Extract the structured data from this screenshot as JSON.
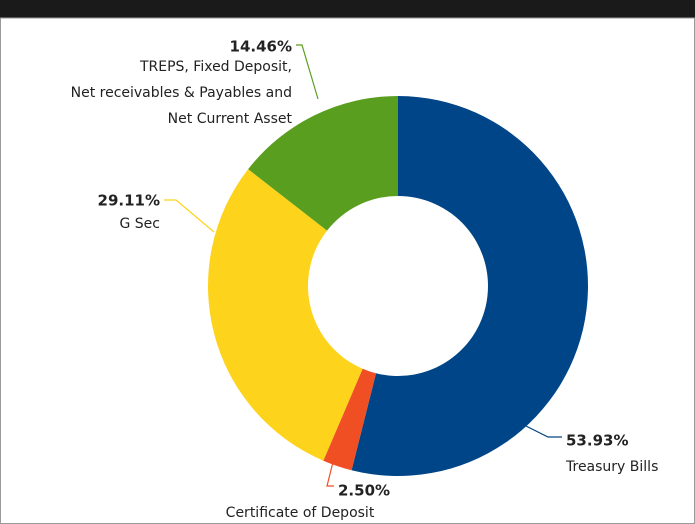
{
  "chart_data": {
    "type": "donut",
    "categories": [
      "Treasury Bills",
      "Certificate of Deposit",
      "G Sec",
      "TREPS, Fixed Deposit, Net receivables & Payables and Net Current Asset"
    ],
    "values": [
      53.93,
      2.5,
      29.11,
      14.46
    ],
    "value_labels": [
      "53.93%",
      "2.50%",
      "29.11%",
      "14.46%"
    ],
    "colors": [
      "#004587",
      "#f04e23",
      "#fdd31c",
      "#5a9e1f"
    ]
  }
}
